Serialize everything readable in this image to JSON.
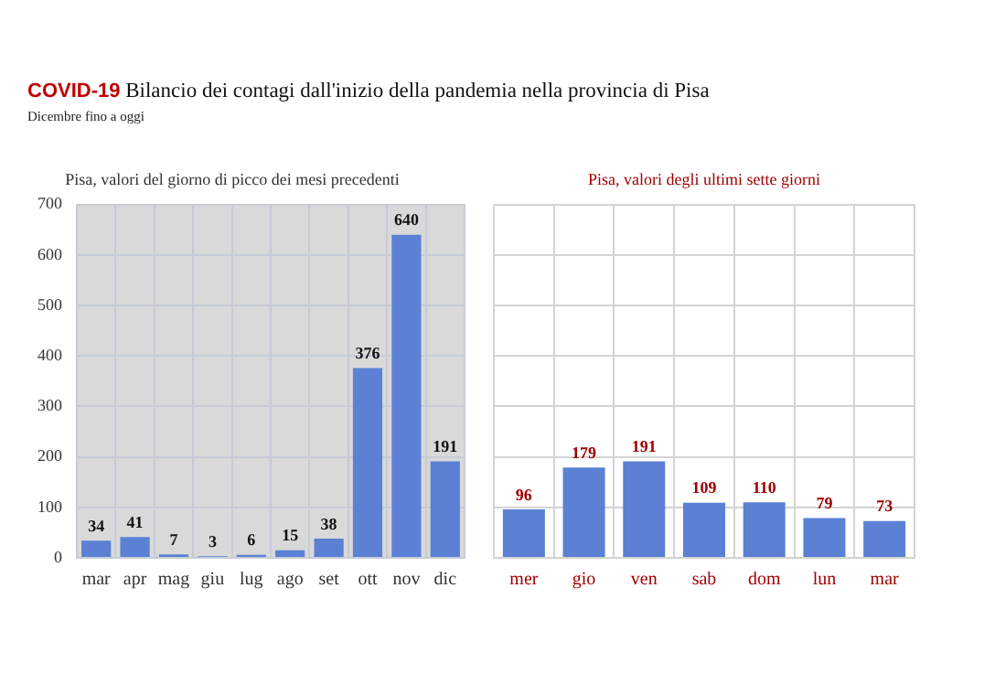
{
  "chart_data": [
    {
      "type": "other",
      "title": "COVID-19 Bilancio dei contagi dall'inizio della pandemia nella provincia di Pisa",
      "subtitle": "Dicembre fino a oggi"
    },
    {
      "type": "bar",
      "title": "Pisa, valori del giorno di picco dei mesi precedenti",
      "categories": [
        "mar",
        "apr",
        "mag",
        "giu",
        "lug",
        "ago",
        "set",
        "ott",
        "nov",
        "dic"
      ],
      "values": [
        34,
        41,
        7,
        3,
        6,
        15,
        38,
        376,
        640,
        191
      ],
      "color": "#5b80d4",
      "ylim": [
        0,
        700
      ],
      "yticks": [
        0,
        100,
        200,
        300,
        400,
        500,
        600,
        700
      ],
      "grid": true,
      "data_labels": true
    },
    {
      "type": "bar",
      "title": "Pisa, valori degli ultimi sette giorni",
      "categories": [
        "mer",
        "gio",
        "ven",
        "sab",
        "dom",
        "lun",
        "mar"
      ],
      "values": [
        96,
        179,
        191,
        109,
        110,
        79,
        73
      ],
      "color": "#5b80d4",
      "ylim": [
        0,
        700
      ],
      "yticks": [
        0,
        100,
        200,
        300,
        400,
        500,
        600,
        700
      ],
      "grid": true,
      "tick_labels": "x",
      "data_labels": true
    }
  ]
}
